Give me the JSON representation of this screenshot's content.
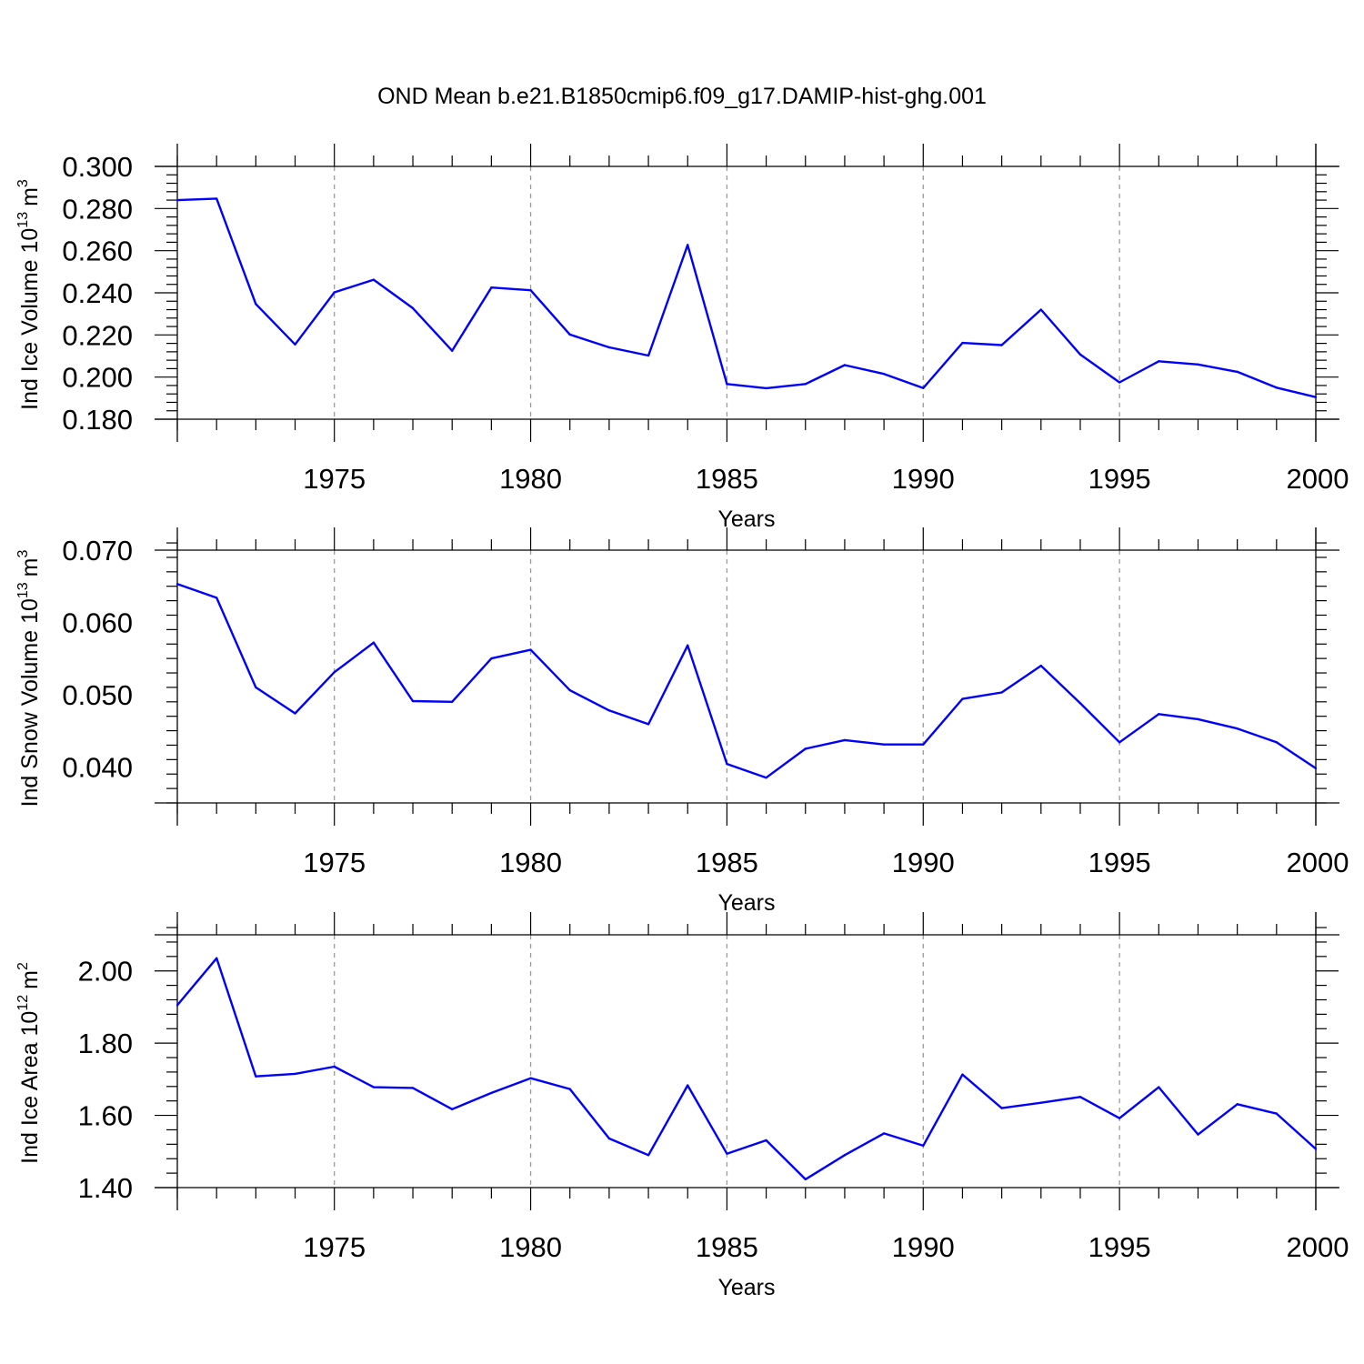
{
  "title": "OND Mean b.e21.B1850cmip6.f09_g17.DAMIP-hist-ghg.001",
  "colors": {
    "line": "#0000ff",
    "axis": "#000000",
    "grid": "#9a9a9a",
    "background": "#ffffff"
  },
  "chart_data": [
    {
      "type": "line",
      "ylabel": "Ind Ice Volume 10",
      "ylabel_sup": "13",
      "ylabel_unit": "m",
      "ylabel_unit_sup": "3",
      "xlabel": "Years",
      "xlim": [
        1971,
        2000
      ],
      "ylim": [
        0.18,
        0.3
      ],
      "xticks": [
        1975,
        1980,
        1985,
        1990,
        1995,
        2000
      ],
      "xtick_labels": [
        "1975",
        "1980",
        "1985",
        "1990",
        "1995",
        "2000"
      ],
      "yticks": [
        0.18,
        0.2,
        0.22,
        0.24,
        0.26,
        0.28,
        0.3
      ],
      "ytick_labels": [
        "0.180",
        "0.200",
        "0.220",
        "0.240",
        "0.260",
        "0.280",
        "0.300"
      ],
      "y_minor_step": 0.004,
      "grid": "vertical dashed at major x ticks",
      "x": [
        1971,
        1972,
        1973,
        1974,
        1975,
        1976,
        1977,
        1978,
        1979,
        1980,
        1981,
        1982,
        1983,
        1984,
        1985,
        1986,
        1987,
        1988,
        1989,
        1990,
        1991,
        1992,
        1993,
        1994,
        1995,
        1996,
        1997,
        1998,
        1999,
        2000
      ],
      "values": [
        0.284,
        0.2847,
        0.2347,
        0.2155,
        0.2402,
        0.2462,
        0.2327,
        0.2125,
        0.2425,
        0.2412,
        0.2202,
        0.2141,
        0.2102,
        0.2627,
        0.1967,
        0.1947,
        0.1967,
        0.2057,
        0.2015,
        0.1948,
        0.2162,
        0.2152,
        0.232,
        0.2107,
        0.1975,
        0.2075,
        0.206,
        0.2025,
        0.195,
        0.1905
      ]
    },
    {
      "type": "line",
      "ylabel": "Ind Snow Volume 10",
      "ylabel_sup": "13",
      "ylabel_unit": "m",
      "ylabel_unit_sup": "3",
      "xlabel": "Years",
      "xlim": [
        1971,
        2000
      ],
      "ylim": [
        0.035,
        0.07
      ],
      "xticks": [
        1975,
        1980,
        1985,
        1990,
        1995,
        2000
      ],
      "xtick_labels": [
        "1975",
        "1980",
        "1985",
        "1990",
        "1995",
        "2000"
      ],
      "yticks": [
        0.04,
        0.05,
        0.06,
        0.07
      ],
      "ytick_labels": [
        "0.040",
        "0.050",
        "0.060",
        "0.070"
      ],
      "y_minor_step": 0.002,
      "grid": "vertical dashed at major x ticks",
      "x": [
        1971,
        1972,
        1973,
        1974,
        1975,
        1976,
        1977,
        1978,
        1979,
        1980,
        1981,
        1982,
        1983,
        1984,
        1985,
        1986,
        1987,
        1988,
        1989,
        1990,
        1991,
        1992,
        1993,
        1994,
        1995,
        1996,
        1997,
        1998,
        1999,
        2000
      ],
      "values": [
        0.0653,
        0.0634,
        0.051,
        0.0474,
        0.0531,
        0.0572,
        0.0491,
        0.049,
        0.055,
        0.0562,
        0.0506,
        0.0478,
        0.0459,
        0.0568,
        0.0404,
        0.0385,
        0.0425,
        0.0437,
        0.0431,
        0.0431,
        0.0494,
        0.0503,
        0.054,
        0.0488,
        0.0434,
        0.0473,
        0.0466,
        0.0453,
        0.0434,
        0.0398
      ]
    },
    {
      "type": "line",
      "ylabel": "Ind Ice Area 10",
      "ylabel_sup": "12",
      "ylabel_unit": "m",
      "ylabel_unit_sup": "2",
      "xlabel": "Years",
      "xlim": [
        1971,
        2000
      ],
      "ylim": [
        1.4,
        2.1
      ],
      "xticks": [
        1975,
        1980,
        1985,
        1990,
        1995,
        2000
      ],
      "xtick_labels": [
        "1975",
        "1980",
        "1985",
        "1990",
        "1995",
        "2000"
      ],
      "yticks": [
        1.4,
        1.6,
        1.8,
        2.0
      ],
      "ytick_labels": [
        "1.40",
        "1.60",
        "1.80",
        "2.00"
      ],
      "y_minor_step": 0.04,
      "grid": "vertical dashed at major x ticks",
      "x": [
        1971,
        1972,
        1973,
        1974,
        1975,
        1976,
        1977,
        1978,
        1979,
        1980,
        1981,
        1982,
        1983,
        1984,
        1985,
        1986,
        1987,
        1988,
        1989,
        1990,
        1991,
        1992,
        1993,
        1994,
        1995,
        1996,
        1997,
        1998,
        1999,
        2000
      ],
      "values": [
        1.905,
        2.035,
        1.708,
        1.715,
        1.735,
        1.678,
        1.676,
        1.617,
        1.662,
        1.703,
        1.673,
        1.536,
        1.49,
        1.683,
        1.494,
        1.531,
        1.423,
        1.49,
        1.55,
        1.516,
        1.713,
        1.62,
        1.635,
        1.651,
        1.592,
        1.678,
        1.547,
        1.631,
        1.605,
        1.507
      ]
    }
  ]
}
